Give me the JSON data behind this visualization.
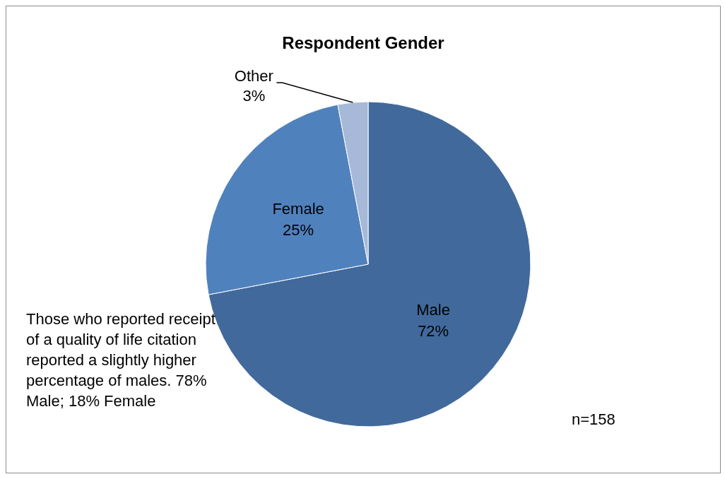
{
  "chart_data": {
    "type": "pie",
    "title": "Respondent Gender",
    "categories": [
      "Male",
      "Female",
      "Other"
    ],
    "values": [
      72,
      25,
      3
    ],
    "value_labels": [
      "72%",
      "25%",
      "3%"
    ],
    "colors": [
      "#41699b",
      "#4f81bd",
      "#a7b9d8"
    ],
    "annotations": [
      "Those who reported receipt of a quality of life citation reported a slightly higher percentage of males. 78% Male; 18% Female",
      "n=158"
    ]
  }
}
